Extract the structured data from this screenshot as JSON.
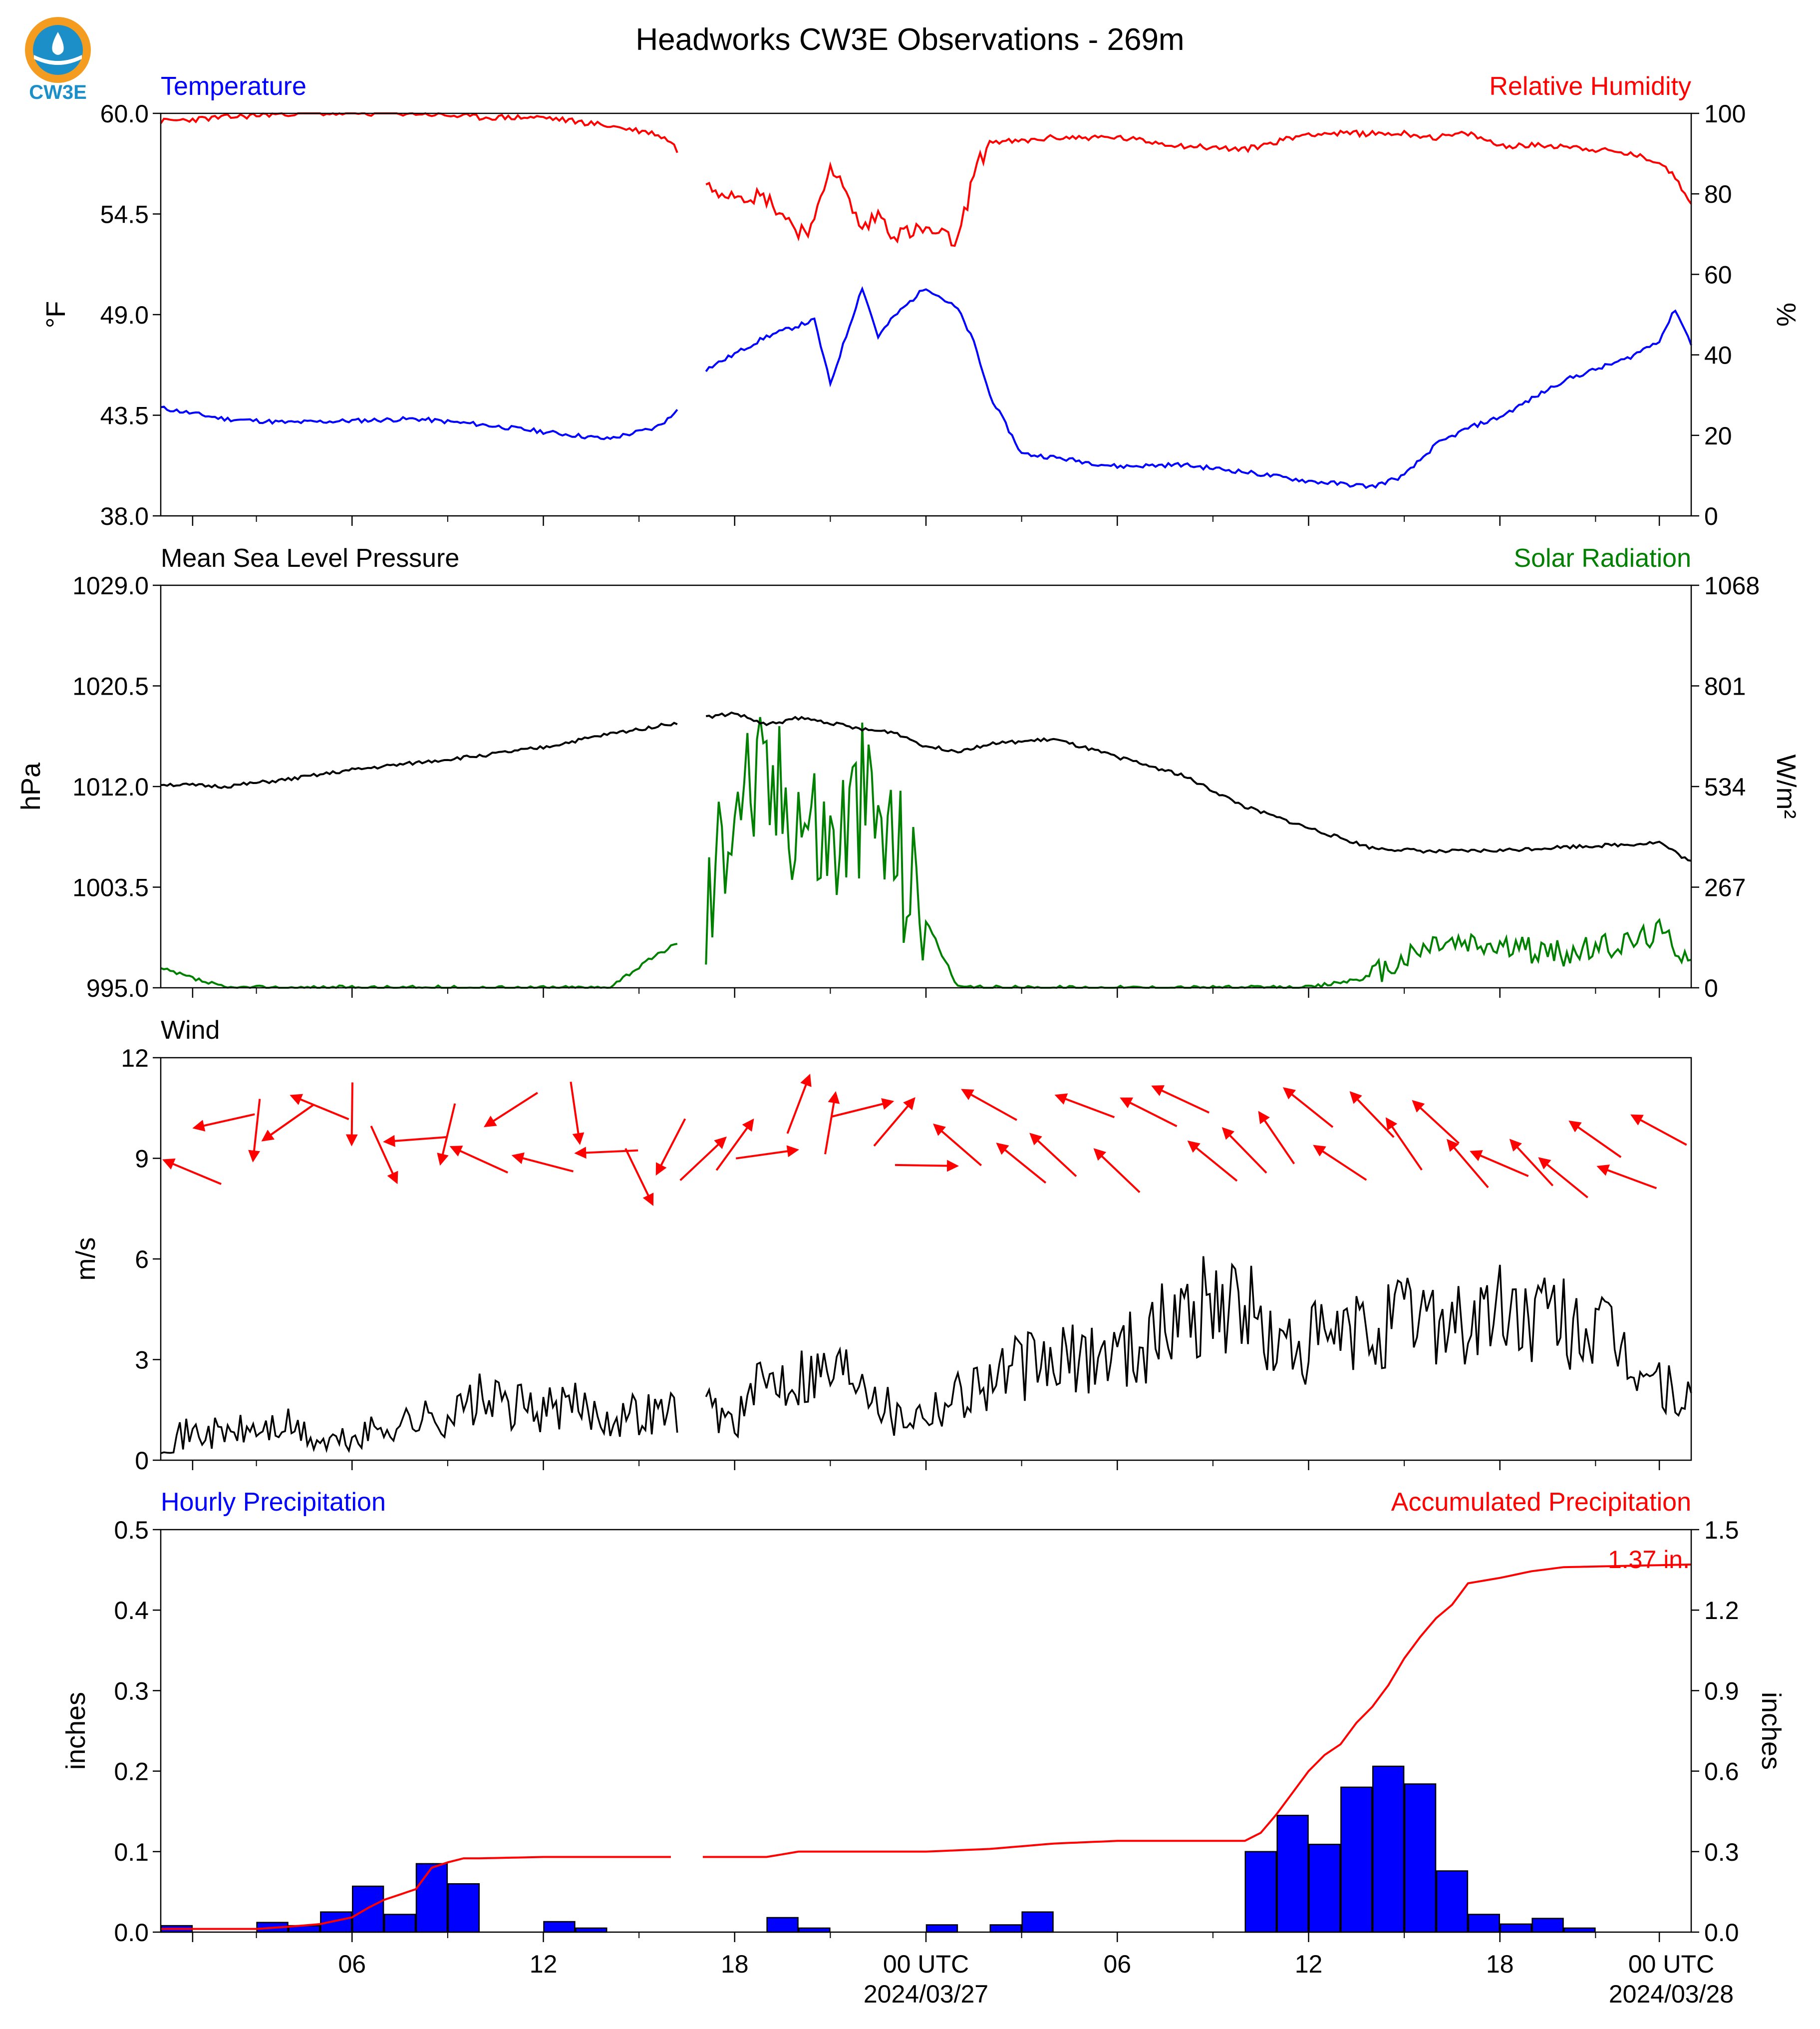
{
  "title": "Headworks CW3E Observations - 269m",
  "logo": {
    "text": "CW3E",
    "colors": {
      "orange": "#f39c1f",
      "blue": "#1c8fc9"
    }
  },
  "colors": {
    "blue": "#0000ff",
    "red": "#ff0000",
    "green": "#008000",
    "black": "#000000",
    "bar_fill": "#0000ff"
  },
  "time_axis": {
    "tick_labels": [
      "06",
      "12",
      "18",
      "00 UTC",
      "06",
      "12",
      "18",
      "00 UTC"
    ],
    "date_labels": [
      "2024/03/27",
      "2024/03/28"
    ]
  },
  "chart_data": [
    {
      "type": "line",
      "left_label": "Temperature",
      "right_label": "Relative Humidity",
      "ylabel": "°F",
      "y2label": "%",
      "ylim": [
        38.0,
        60.0
      ],
      "y2lim": [
        0,
        100
      ],
      "yticks": [
        "60.0",
        "54.5",
        "49.0",
        "43.5",
        "38.0"
      ],
      "y2ticks": [
        "100",
        "80",
        "60",
        "40",
        "20",
        "0"
      ],
      "hours": [
        0,
        2,
        4,
        6,
        8,
        10,
        12,
        14,
        15.5,
        16,
        17,
        19,
        20,
        20.5,
        21,
        22,
        22.5,
        23,
        24,
        25,
        25.5,
        26,
        27,
        28,
        30,
        32,
        34,
        36,
        38,
        39,
        40,
        41,
        42,
        44,
        46,
        47,
        47.5,
        48
      ],
      "series": [
        {
          "values": [
            43.9,
            43.3,
            43.1,
            43.2,
            43.3,
            43.0,
            42.6,
            42.2,
            42.8,
            43.4,
            45.9,
            47.8,
            48.4,
            48.7,
            45.2,
            50.5,
            47.8,
            48.9,
            50.5,
            49.3,
            47.5,
            44.6,
            41.4,
            41.2,
            40.7,
            40.8,
            40.4,
            39.9,
            39.6,
            40.2,
            41.9,
            42.8,
            43.4,
            45.4,
            46.6,
            47.6,
            49.3,
            47.4
          ]
        },
        {
          "values": [
            98,
            99,
            100,
            100,
            100,
            99,
            99,
            97,
            95,
            93,
            82,
            79,
            71,
            72,
            88,
            71,
            75,
            70,
            71,
            68,
            85,
            93,
            93,
            94,
            94,
            92,
            91,
            95,
            95,
            95,
            94,
            95,
            92,
            92,
            90,
            88,
            84,
            78
          ]
        }
      ]
    },
    {
      "type": "line",
      "left_label": "Mean Sea Level Pressure",
      "right_label": "Solar Radiation",
      "ylabel": "hPa",
      "y2label": "W/m²",
      "ylim": [
        995.0,
        1029.0
      ],
      "y2lim": [
        0,
        1068
      ],
      "yticks": [
        "1029.0",
        "1020.5",
        "1012.0",
        "1003.5",
        "995.0"
      ],
      "y2ticks": [
        "1068",
        "801",
        "534",
        "267",
        "0"
      ],
      "hours": [
        0,
        2,
        4,
        6,
        8,
        10,
        12,
        14,
        16,
        17,
        18,
        19,
        20,
        21,
        22,
        23,
        24,
        25,
        26,
        28,
        30,
        32,
        34,
        36,
        38,
        40,
        42,
        44,
        46,
        47,
        48
      ],
      "series": [
        {
          "values": [
            1012.2,
            1012.0,
            1012.6,
            1013.4,
            1014.0,
            1014.6,
            1015.3,
            1016.4,
            1017.3,
            1017.8,
            1018.2,
            1017.2,
            1017.8,
            1017.4,
            1016.8,
            1016.6,
            1015.4,
            1015.0,
            1015.6,
            1016.0,
            1014.5,
            1013.0,
            1010.3,
            1008.5,
            1006.8,
            1006.5,
            1006.6,
            1006.9,
            1007.1,
            1007.3,
            1005.6
          ]
        },
        {
          "values": [
            50,
            0,
            0,
            0,
            0,
            0,
            0,
            0,
            110,
            140,
            560,
            530,
            500,
            380,
            510,
            380,
            180,
            0,
            0,
            0,
            0,
            0,
            0,
            0,
            30,
            120,
            110,
            90,
            120,
            150,
            80
          ]
        }
      ]
    },
    {
      "type": "line",
      "left_label": "Wind",
      "ylabel": "m/s",
      "ylim": [
        0,
        12
      ],
      "yticks": [
        "12",
        "9",
        "6",
        "3",
        "0"
      ],
      "hours": [
        0,
        1,
        2,
        3,
        4,
        5,
        6,
        7,
        8,
        9,
        10,
        11,
        12,
        13,
        14,
        15,
        16,
        17,
        18,
        19,
        20,
        21,
        22,
        23,
        24,
        25,
        26,
        27,
        28,
        29,
        30,
        31,
        32,
        33,
        34,
        35,
        36,
        37,
        38,
        39,
        40,
        41,
        42,
        43,
        44,
        45,
        46,
        47,
        48
      ],
      "series": [
        {
          "values": [
            0.6,
            0.8,
            0.8,
            0.9,
            1.0,
            0.5,
            0.6,
            1.0,
            1.2,
            1.3,
            1.8,
            1.6,
            1.5,
            1.6,
            1.3,
            1.4,
            1.5,
            1.6,
            1.2,
            2.4,
            2.6,
            2.7,
            2.8,
            1.3,
            1.5,
            2.0,
            2.4,
            2.8,
            2.8,
            3.1,
            3.3,
            3.6,
            4.4,
            4.8,
            4.6,
            3.2,
            3.4,
            3.6,
            3.8,
            4.2,
            4.4,
            4.0,
            4.4,
            4.2,
            4.1,
            3.8,
            3.0,
            2.2,
            1.6
          ]
        }
      ]
    },
    {
      "type": "bar",
      "left_label": "Hourly Precipitation",
      "right_label": "Accumulated Precipitation",
      "ylabel": "inches",
      "y2label": "inches",
      "ylim": [
        0,
        0.5
      ],
      "y2lim": [
        0,
        1.5
      ],
      "yticks": [
        "0.5",
        "0.4",
        "0.3",
        "0.2",
        "0.1",
        "0.0"
      ],
      "y2ticks": [
        "1.5",
        "1.2",
        "0.9",
        "0.6",
        "0.3",
        "0.0"
      ],
      "total_label": "1.37 in.",
      "bar_hours": [
        0,
        3,
        4,
        5,
        6,
        7,
        8,
        9,
        12,
        13,
        19,
        20,
        24,
        26,
        27,
        34,
        35,
        36,
        37,
        38,
        39,
        40,
        41,
        42,
        43,
        44,
        45
      ],
      "bar_values": [
        0.008,
        0.012,
        0.008,
        0.025,
        0.057,
        0.022,
        0.085,
        0.06,
        0.013,
        0.005,
        0.018,
        0.005,
        0.009,
        0.009,
        0.025,
        0.1,
        0.145,
        0.109,
        0.18,
        0.206,
        0.184,
        0.076,
        0.022,
        0.01,
        0.017,
        0.005,
        0.0
      ],
      "acc_hours": [
        0,
        3,
        4,
        5,
        6,
        6.5,
        7,
        8,
        8.5,
        9,
        9.5,
        10,
        12,
        13,
        14,
        16,
        17,
        18,
        19,
        20,
        21,
        22,
        24,
        26,
        27,
        28,
        30,
        34,
        34.5,
        35,
        35.5,
        36,
        36.5,
        37,
        37.5,
        38,
        38.5,
        39,
        39.5,
        40,
        40.5,
        41,
        42,
        43,
        44,
        48
      ],
      "acc_values": [
        0.012,
        0.012,
        0.02,
        0.03,
        0.055,
        0.09,
        0.12,
        0.16,
        0.24,
        0.26,
        0.275,
        0.275,
        0.28,
        0.28,
        0.28,
        0.28,
        0.28,
        0.28,
        0.28,
        0.3,
        0.3,
        0.3,
        0.3,
        0.31,
        0.32,
        0.33,
        0.34,
        0.34,
        0.37,
        0.44,
        0.52,
        0.6,
        0.66,
        0.7,
        0.78,
        0.84,
        0.92,
        1.02,
        1.1,
        1.17,
        1.22,
        1.3,
        1.32,
        1.345,
        1.36,
        1.37
      ]
    }
  ]
}
